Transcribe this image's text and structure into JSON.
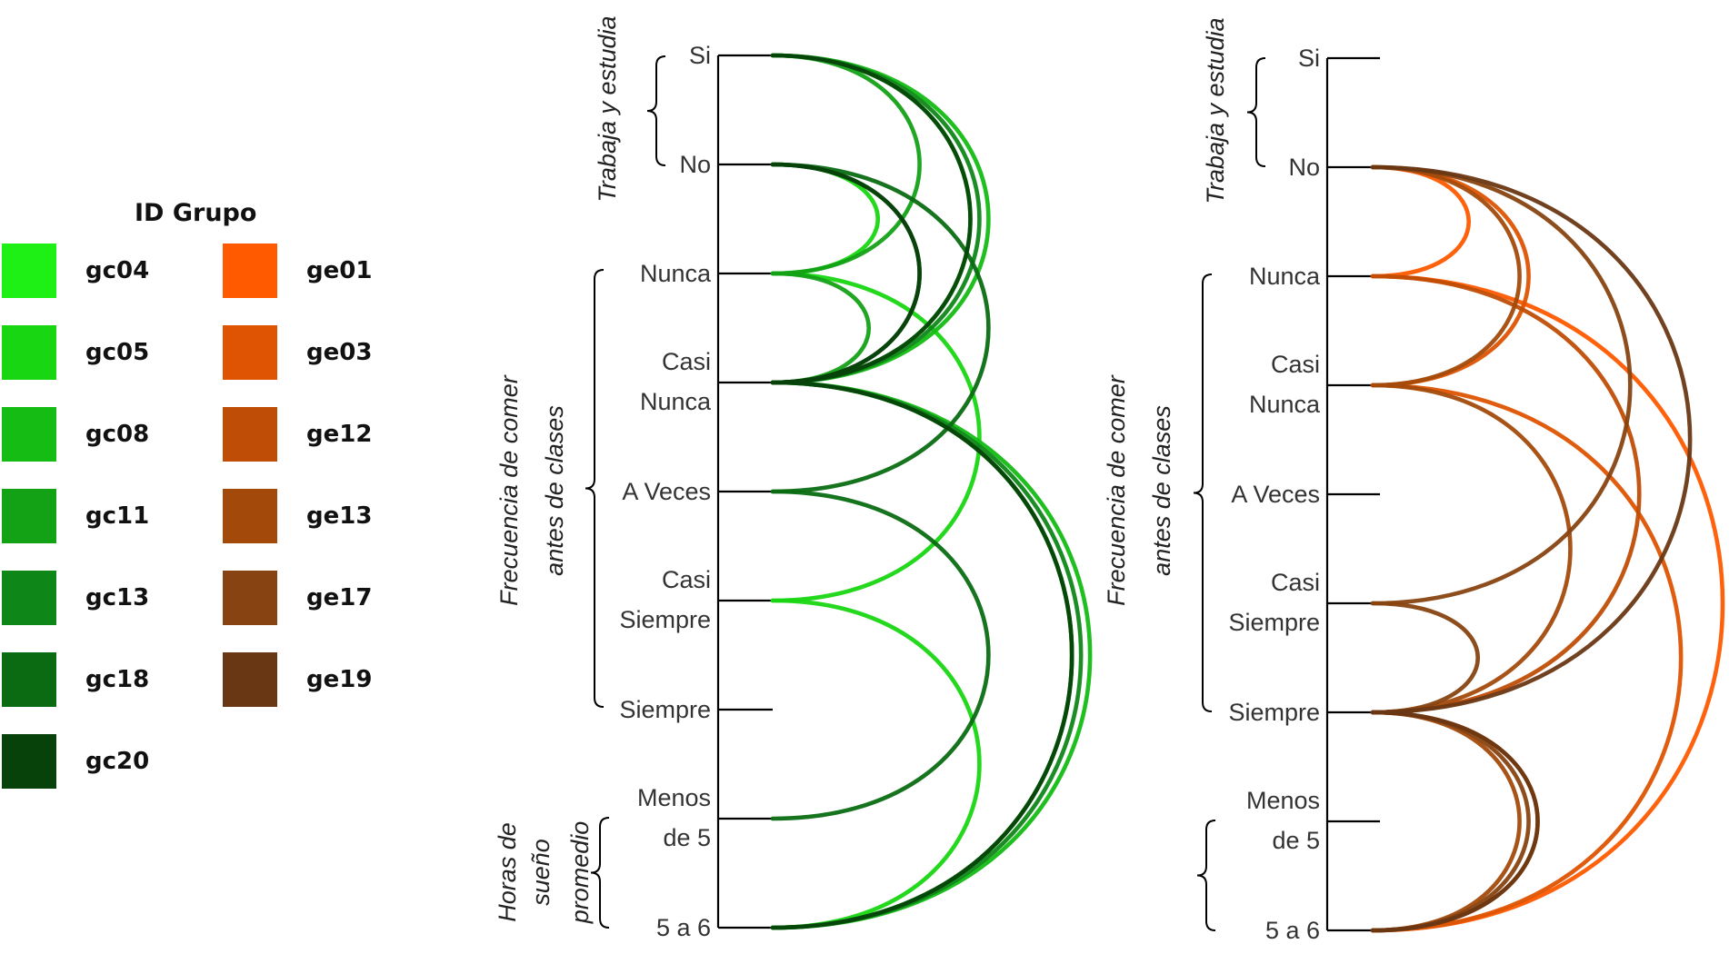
{
  "legend": {
    "title": "ID Grupo",
    "groups": [
      {
        "id": "gc04",
        "color": "#1ef015"
      },
      {
        "id": "gc05",
        "color": "#18d611"
      },
      {
        "id": "gc08",
        "color": "#14bc14"
      },
      {
        "id": "gc11",
        "color": "#13a116"
      },
      {
        "id": "gc13",
        "color": "#0f8718"
      },
      {
        "id": "gc18",
        "color": "#0a6b12"
      },
      {
        "id": "gc20",
        "color": "#06420a"
      },
      {
        "id": "ge01",
        "color": "#ff5a00"
      },
      {
        "id": "ge03",
        "color": "#de5402"
      },
      {
        "id": "ge12",
        "color": "#bf4d05"
      },
      {
        "id": "ge13",
        "color": "#a34a0b"
      },
      {
        "id": "ge17",
        "color": "#874311"
      },
      {
        "id": "ge19",
        "color": "#693714"
      }
    ]
  },
  "axis_groups": [
    {
      "key": "work",
      "label_lines": [
        "Trabaja y estudia"
      ]
    },
    {
      "key": "eat",
      "label_lines": [
        "Frecuencia de comer",
        "antes de clases"
      ]
    },
    {
      "key": "sleep",
      "label_lines": [
        "Horas de",
        "sueño",
        "promedio"
      ]
    }
  ],
  "categories": [
    {
      "key": "si",
      "lines": [
        "Si"
      ]
    },
    {
      "key": "no",
      "lines": [
        "No"
      ]
    },
    {
      "key": "nunca",
      "lines": [
        "Nunca"
      ]
    },
    {
      "key": "casi_nunca",
      "lines": [
        "Casi",
        "Nunca"
      ]
    },
    {
      "key": "a_veces",
      "lines": [
        "A Veces"
      ]
    },
    {
      "key": "casi_siempre",
      "lines": [
        "Casi",
        "Siempre"
      ]
    },
    {
      "key": "siempre",
      "lines": [
        "Siempre"
      ]
    },
    {
      "key": "menos_5",
      "lines": [
        "Menos",
        "de 5"
      ]
    },
    {
      "key": "5a6",
      "lines": [
        "5 a 6"
      ]
    }
  ],
  "panels": [
    {
      "key": "control",
      "show_sleep_label": true,
      "groups": [
        {
          "id": "gc04",
          "path": [
            "si",
            "casi_nunca",
            "5a6"
          ]
        },
        {
          "id": "gc05",
          "path": [
            "no",
            "nunca",
            "casi_siempre",
            "5a6"
          ]
        },
        {
          "id": "gc08",
          "path": [
            "si",
            "casi_nunca",
            "5a6"
          ]
        },
        {
          "id": "gc11",
          "path": [
            "si",
            "nunca",
            "casi_nunca",
            "5a6"
          ]
        },
        {
          "id": "gc13",
          "path": [
            "si",
            "casi_nunca",
            "5a6"
          ]
        },
        {
          "id": "gc18",
          "path": [
            "no",
            "a_veces",
            "menos_5"
          ]
        },
        {
          "id": "gc20",
          "path": [
            "si",
            "casi_nunca",
            "no",
            "casi_nunca",
            "5a6"
          ]
        }
      ]
    },
    {
      "key": "experimental",
      "show_sleep_label": false,
      "groups": [
        {
          "id": "ge01",
          "path": [
            "no",
            "nunca",
            "5a6"
          ]
        },
        {
          "id": "ge03",
          "path": [
            "no",
            "casi_nunca",
            "5a6"
          ]
        },
        {
          "id": "ge12",
          "path": [
            "nunca",
            "siempre",
            "5a6"
          ]
        },
        {
          "id": "ge13",
          "path": [
            "no",
            "casi_nunca",
            "siempre",
            "5a6"
          ]
        },
        {
          "id": "ge17",
          "path": [
            "no",
            "casi_siempre",
            "siempre",
            "5a6"
          ]
        },
        {
          "id": "ge19",
          "path": [
            "no",
            "siempre",
            "5a6"
          ]
        }
      ]
    }
  ]
}
